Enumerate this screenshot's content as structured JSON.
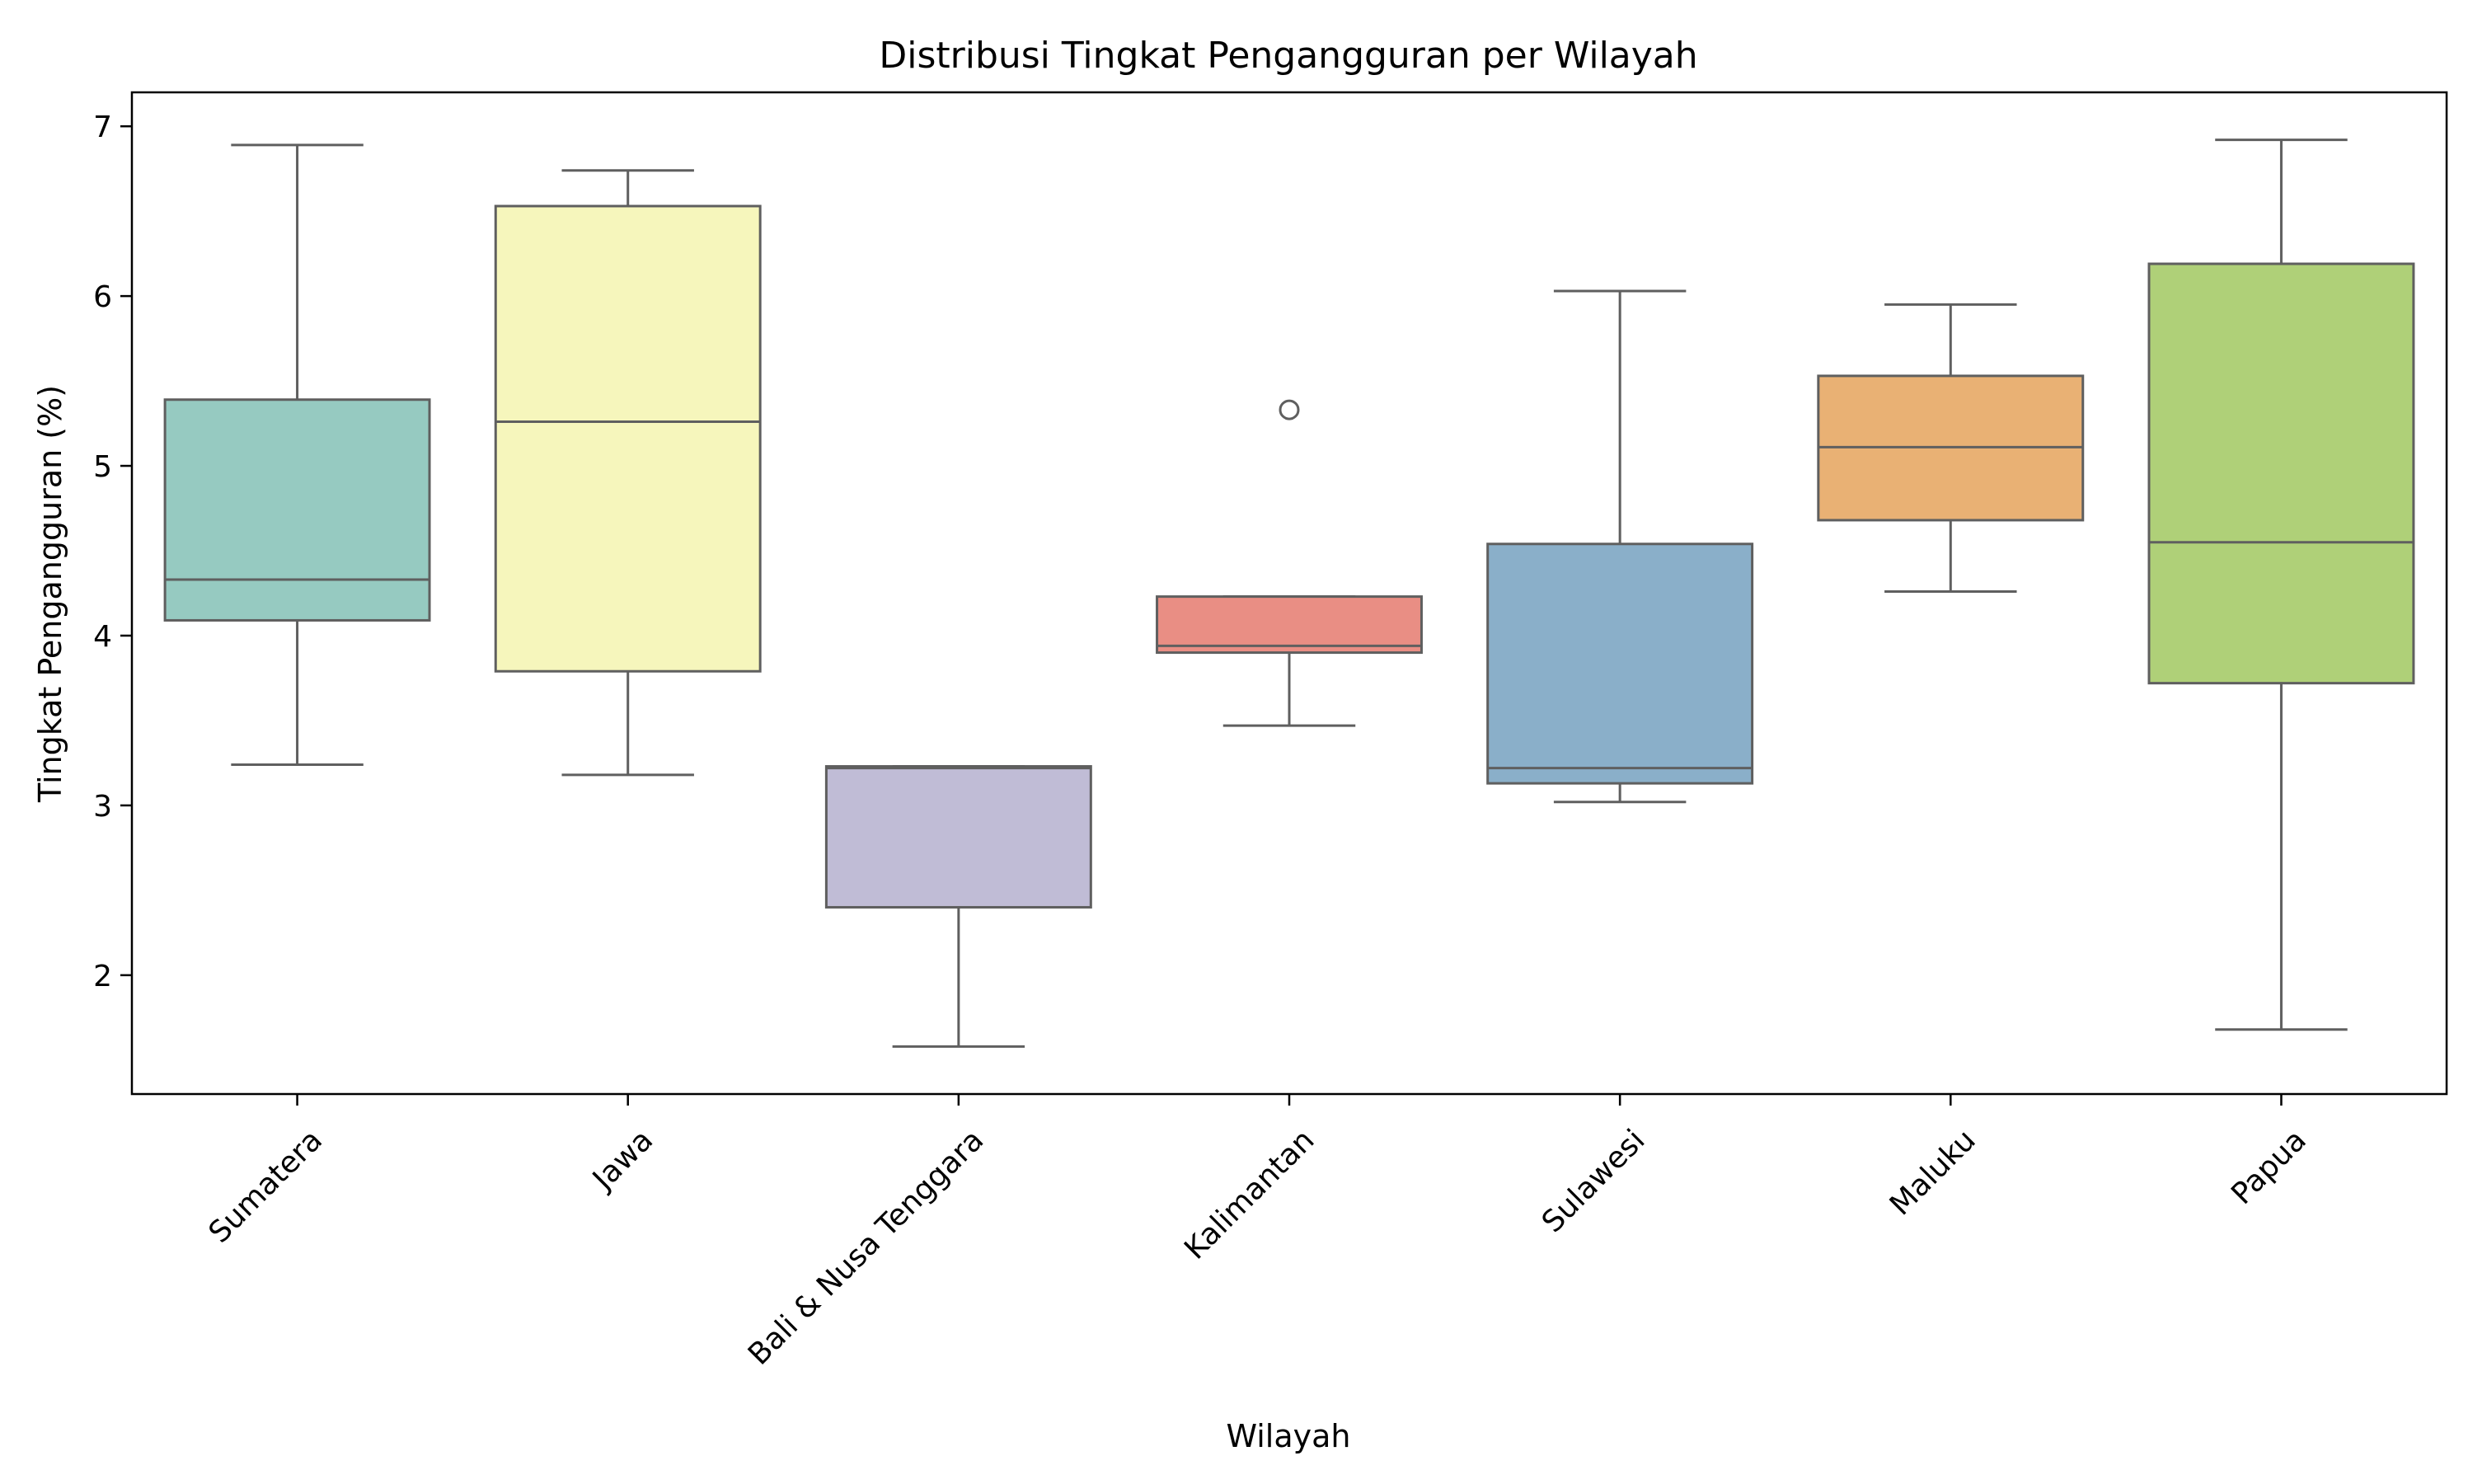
{
  "chart_data": {
    "type": "boxplot",
    "title": "Distribusi Tingkat Pengangguran per Wilayah",
    "xlabel": "Wilayah",
    "ylabel": "Tingkat Pengangguran (%)",
    "ylim": [
      1.3,
      7.2
    ],
    "yticks": [
      2,
      3,
      4,
      5,
      6,
      7
    ],
    "grid": false,
    "categories": [
      "Sumatera",
      "Jawa",
      "Bali & Nusa Tenggara",
      "Kalimantan",
      "Sulawesi",
      "Maluku",
      "Papua"
    ],
    "boxes": [
      {
        "category": "Sumatera",
        "whisker_low": 3.24,
        "q1": 4.09,
        "median": 4.33,
        "q3": 5.39,
        "whisker_high": 6.89,
        "outliers": [],
        "color": "#96cac1"
      },
      {
        "category": "Jawa",
        "whisker_low": 3.18,
        "q1": 3.79,
        "median": 5.26,
        "q3": 6.53,
        "whisker_high": 6.74,
        "outliers": [],
        "color": "#f6f6bc"
      },
      {
        "category": "Bali & Nusa Tenggara",
        "whisker_low": 1.58,
        "q1": 2.4,
        "median": 3.22,
        "q3": 3.23,
        "whisker_high": 3.23,
        "outliers": [],
        "color": "#c0bcd6"
      },
      {
        "category": "Kalimantan",
        "whisker_low": 3.47,
        "q1": 3.9,
        "median": 3.94,
        "q3": 4.23,
        "whisker_high": 4.23,
        "outliers": [
          5.33
        ],
        "color": "#e98e84"
      },
      {
        "category": "Sulawesi",
        "whisker_low": 3.02,
        "q1": 3.13,
        "median": 3.22,
        "q3": 4.54,
        "whisker_high": 6.03,
        "outliers": [],
        "color": "#8aafc9"
      },
      {
        "category": "Maluku",
        "whisker_low": 4.26,
        "q1": 4.68,
        "median": 5.11,
        "q3": 5.53,
        "whisker_high": 5.95,
        "outliers": [],
        "color": "#e9b174"
      },
      {
        "category": "Papua",
        "whisker_low": 1.68,
        "q1": 3.72,
        "median": 4.55,
        "q3": 6.19,
        "whisker_high": 6.92,
        "outliers": [],
        "color": "#afd078"
      }
    ],
    "line_color": "#5f5f5f"
  }
}
